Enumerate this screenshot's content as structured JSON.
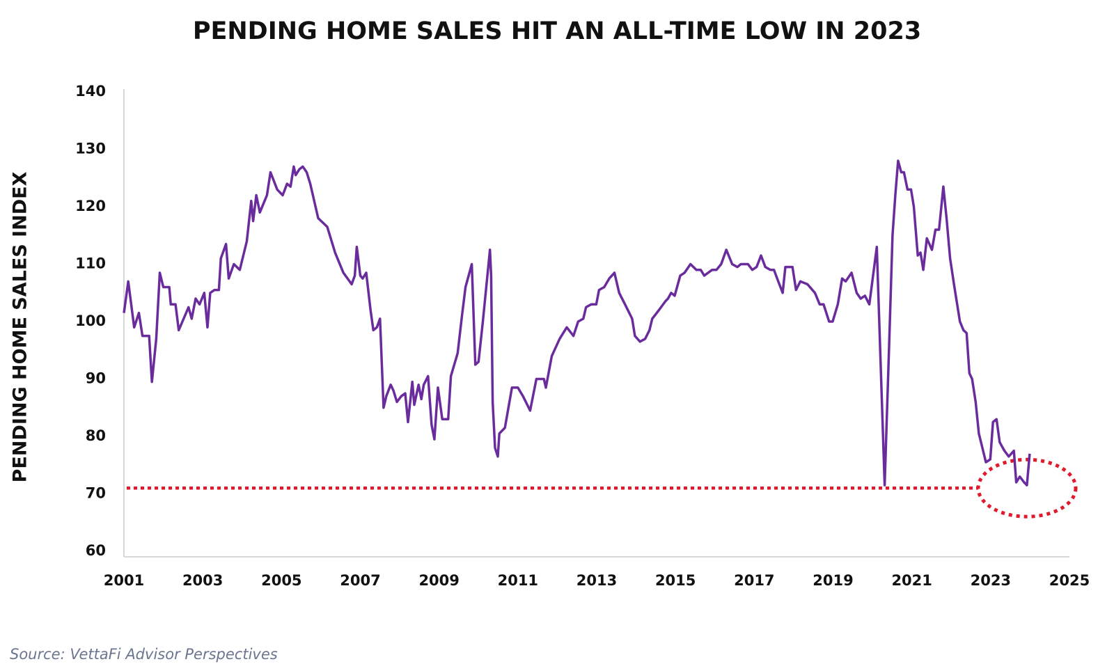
{
  "chart_data": {
    "type": "line",
    "title": "PENDING HOME SALES HIT AN ALL-TIME LOW IN 2023",
    "y_label": "PENDING HOME SALES INDEX",
    "source": "Source: VettaFi Advisor Perspectives",
    "xlim": [
      2001,
      2025
    ],
    "xticks": [
      2001,
      2003,
      2005,
      2007,
      2009,
      2011,
      2013,
      2015,
      2017,
      2019,
      2021,
      2023,
      2025
    ],
    "ylim": [
      60,
      140
    ],
    "yticks": [
      60,
      70,
      80,
      90,
      100,
      110,
      120,
      130,
      140
    ],
    "grid": false,
    "reference_line": {
      "value": 71,
      "color": "#e0192b"
    },
    "series": [
      {
        "name": "Pending Home Sales Index",
        "color": "#6a2c9c",
        "x": [
          2001.0,
          2001.11,
          2001.26,
          2001.38,
          2001.47,
          2001.64,
          2001.71,
          2001.82,
          2001.91,
          2002.0,
          2002.15,
          2002.19,
          2002.31,
          2002.39,
          2002.64,
          2002.72,
          2002.82,
          2002.92,
          2003.04,
          2003.12,
          2003.19,
          2003.3,
          2003.41,
          2003.46,
          2003.59,
          2003.66,
          2003.79,
          2003.94,
          2004.12,
          2004.23,
          2004.28,
          2004.36,
          2004.45,
          2004.63,
          2004.72,
          2004.89,
          2005.03,
          2005.14,
          2005.23,
          2005.31,
          2005.36,
          2005.45,
          2005.54,
          2005.64,
          2005.73,
          2005.93,
          2006.16,
          2006.36,
          2006.57,
          2006.78,
          2006.86,
          2006.91,
          2007.0,
          2007.06,
          2007.15,
          2007.26,
          2007.33,
          2007.42,
          2007.5,
          2007.59,
          2007.66,
          2007.77,
          2007.84,
          2007.93,
          2008.04,
          2008.14,
          2008.21,
          2008.32,
          2008.37,
          2008.48,
          2008.55,
          2008.61,
          2008.72,
          2008.81,
          2008.88,
          2008.97,
          2009.08,
          2009.23,
          2009.3,
          2009.47,
          2009.58,
          2009.67,
          2009.83,
          2009.92,
          2010.0,
          2010.11,
          2010.29,
          2010.32,
          2010.36,
          2010.42,
          2010.49,
          2010.53,
          2010.67,
          2010.85,
          2011.0,
          2011.13,
          2011.31,
          2011.47,
          2011.66,
          2011.71,
          2011.86,
          2012.06,
          2012.24,
          2012.41,
          2012.53,
          2012.66,
          2012.73,
          2012.86,
          2012.99,
          2013.06,
          2013.19,
          2013.32,
          2013.45,
          2013.57,
          2013.72,
          2013.9,
          2013.97,
          2014.1,
          2014.23,
          2014.34,
          2014.41,
          2014.58,
          2014.74,
          2014.81,
          2014.89,
          2014.98,
          2015.12,
          2015.23,
          2015.38,
          2015.53,
          2015.64,
          2015.73,
          2015.93,
          2016.04,
          2016.16,
          2016.29,
          2016.44,
          2016.57,
          2016.66,
          2016.84,
          2016.95,
          2017.06,
          2017.17,
          2017.28,
          2017.41,
          2017.5,
          2017.61,
          2017.72,
          2017.79,
          2017.97,
          2018.06,
          2018.17,
          2018.35,
          2018.54,
          2018.66,
          2018.76,
          2018.9,
          2018.99,
          2019.12,
          2019.23,
          2019.32,
          2019.47,
          2019.6,
          2019.7,
          2019.81,
          2019.92,
          2020.11,
          2020.31,
          2020.42,
          2020.51,
          2020.58,
          2020.65,
          2020.73,
          2020.8,
          2020.89,
          2020.98,
          2021.05,
          2021.15,
          2021.22,
          2021.29,
          2021.38,
          2021.51,
          2021.6,
          2021.69,
          2021.8,
          2021.88,
          2021.97,
          2022.08,
          2022.22,
          2022.31,
          2022.39,
          2022.46,
          2022.53,
          2022.62,
          2022.7,
          2022.79,
          2022.88,
          2022.99,
          2023.06,
          2023.15,
          2023.23,
          2023.35,
          2023.46,
          2023.59,
          2023.65,
          2023.74,
          2023.85,
          2023.92,
          2023.99
        ],
        "values": [
          101.5,
          107,
          99,
          101.5,
          97.5,
          97.5,
          89.5,
          97,
          108.5,
          106,
          106,
          103,
          103,
          98.5,
          102.5,
          100.5,
          104,
          103,
          105,
          99,
          105,
          105.5,
          105.5,
          111,
          113.5,
          107.5,
          110,
          109,
          114,
          121,
          117.5,
          122,
          119,
          122,
          126,
          123,
          122,
          124,
          123.5,
          127,
          125.5,
          126.5,
          127,
          126,
          124,
          118,
          116.5,
          112,
          108.5,
          106.5,
          108,
          113,
          108,
          107.5,
          108.5,
          102,
          98.5,
          99,
          100.5,
          85,
          87,
          89,
          88,
          86,
          87,
          87.5,
          82.5,
          89.5,
          85.5,
          89,
          86.5,
          89,
          90.5,
          82,
          79.5,
          88.5,
          83,
          83,
          90.5,
          94.5,
          101,
          106,
          110,
          92.5,
          93,
          100,
          112.5,
          108,
          86,
          78,
          76.5,
          80.5,
          81.5,
          88.5,
          88.5,
          87,
          84.5,
          90,
          90,
          88.5,
          94,
          97,
          99,
          97.5,
          100,
          100.5,
          102.5,
          103,
          103,
          105.5,
          106,
          107.5,
          108.5,
          105,
          103,
          100.5,
          97.5,
          96.5,
          97,
          98.5,
          100.5,
          102,
          103.5,
          104,
          105,
          104.5,
          108,
          108.5,
          110,
          109,
          109,
          108,
          109,
          109,
          110,
          112.5,
          110,
          109.5,
          110,
          110,
          109,
          109.5,
          111.5,
          109.5,
          109,
          109,
          107,
          105,
          109.5,
          109.5,
          105.5,
          107,
          106.5,
          105,
          103,
          103,
          100,
          100,
          103,
          107.5,
          107,
          108.5,
          105,
          104,
          104.5,
          103,
          113,
          71.5,
          95,
          115,
          122,
          128,
          126,
          126,
          123,
          123,
          120,
          111.5,
          112,
          109,
          114.5,
          112.5,
          116,
          116,
          123.5,
          118,
          111,
          106,
          100,
          98.5,
          98,
          91,
          90,
          86,
          80.5,
          78,
          75.5,
          76,
          82.5,
          83,
          79,
          77.5,
          76.5,
          77.5,
          72,
          73,
          72,
          71.5,
          77
        ]
      }
    ]
  }
}
